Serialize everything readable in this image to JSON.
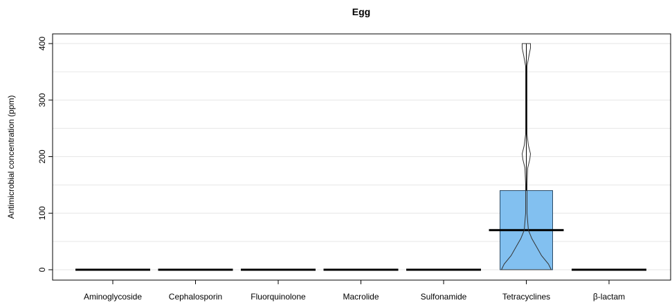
{
  "chart_data": {
    "type": "box",
    "title": "Egg",
    "xlabel": "",
    "ylabel": "Antimicrobial concentration (ppm)",
    "ylim": [
      -15,
      415
    ],
    "yticks": [
      0,
      100,
      200,
      300,
      400
    ],
    "gridlines": [
      0,
      50,
      100,
      150,
      200,
      250,
      300,
      350,
      400
    ],
    "grid": true,
    "colors": {
      "box_fill": "#82C0F0",
      "box_edge": "#2a4a66",
      "median": "#000000",
      "grid": "#e6e6e6"
    },
    "categories": [
      "Aminoglycoside",
      "Cephalosporin",
      "Fluorquinolone",
      "Macrolide",
      "Sulfonamide",
      "Tetracyclines",
      "β-lactam"
    ],
    "boxes": [
      {
        "category": "Aminoglycoside",
        "q1": 0,
        "median": 0,
        "q3": 0,
        "min": 0,
        "max": 0
      },
      {
        "category": "Cephalosporin",
        "q1": 0,
        "median": 0,
        "q3": 0,
        "min": 0,
        "max": 0
      },
      {
        "category": "Fluorquinolone",
        "q1": 0,
        "median": 0,
        "q3": 0,
        "min": 0,
        "max": 0
      },
      {
        "category": "Macrolide",
        "q1": 0,
        "median": 0,
        "q3": 0,
        "min": 0,
        "max": 0
      },
      {
        "category": "Sulfonamide",
        "q1": 0,
        "median": 0,
        "q3": 0,
        "min": 0,
        "max": 0
      },
      {
        "category": "Tetracyclines",
        "q1": 0,
        "median": 70,
        "q3": 140,
        "min": 0,
        "max": 400
      },
      {
        "category": "β-lactam",
        "q1": 0,
        "median": 0,
        "q3": 0,
        "min": 0,
        "max": 0
      }
    ],
    "violin": {
      "category": "Tetracyclines",
      "profile": [
        [
          0,
          36
        ],
        [
          10,
          32
        ],
        [
          25,
          22
        ],
        [
          40,
          15
        ],
        [
          55,
          8
        ],
        [
          70,
          3
        ],
        [
          100,
          1
        ],
        [
          150,
          1
        ],
        [
          180,
          2
        ],
        [
          195,
          5
        ],
        [
          205,
          6
        ],
        [
          220,
          3
        ],
        [
          240,
          1
        ],
        [
          300,
          1
        ],
        [
          360,
          1
        ],
        [
          380,
          4
        ],
        [
          392,
          6
        ],
        [
          400,
          6
        ]
      ]
    }
  }
}
